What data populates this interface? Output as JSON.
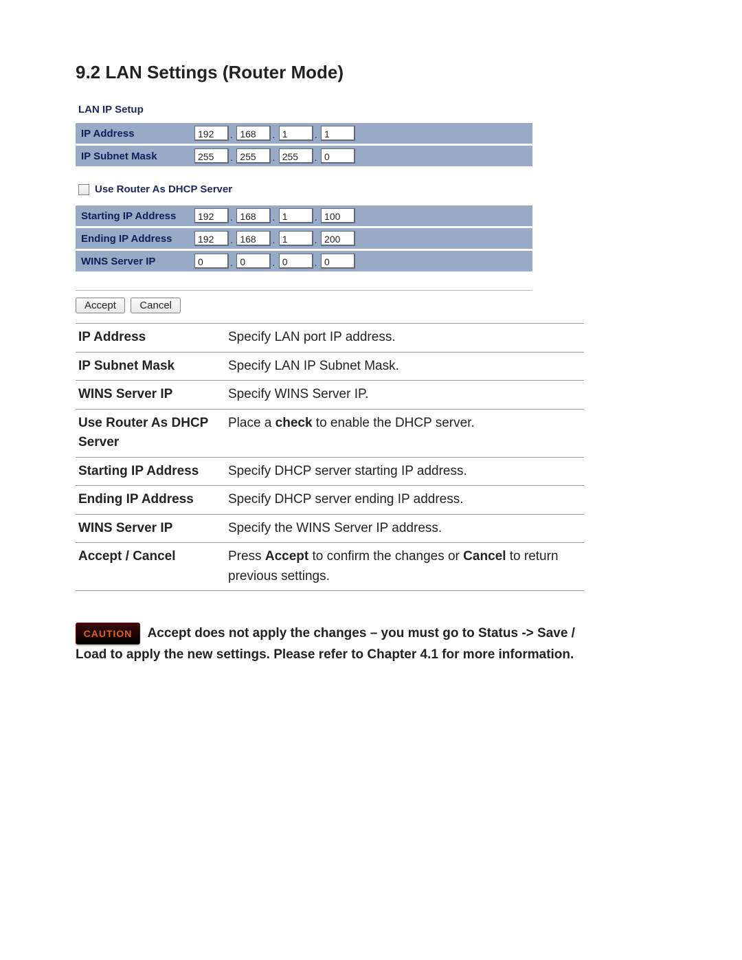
{
  "title": "9.2 LAN Settings (Router Mode)",
  "panel1_heading": "LAN IP Setup",
  "rows1": {
    "ip_address": {
      "label": "IP Address",
      "o": [
        "192",
        "168",
        "1",
        "1"
      ]
    },
    "subnet": {
      "label": "IP Subnet Mask",
      "o": [
        "255",
        "255",
        "255",
        "0"
      ]
    }
  },
  "dhcp_checkbox_label": "Use Router As DHCP Server",
  "rows2": {
    "start": {
      "label": "Starting IP Address",
      "o": [
        "192",
        "168",
        "1",
        "100"
      ]
    },
    "end": {
      "label": "Ending IP Address",
      "o": [
        "192",
        "168",
        "1",
        "200"
      ]
    },
    "wins": {
      "label": "WINS Server IP",
      "o": [
        "0",
        "0",
        "0",
        "0"
      ]
    }
  },
  "buttons": {
    "accept": "Accept",
    "cancel": "Cancel"
  },
  "desc": [
    {
      "k": "IP Address",
      "v": "Specify LAN port IP address."
    },
    {
      "k": "IP Subnet Mask",
      "v": "Specify LAN IP Subnet Mask."
    },
    {
      "k": "WINS Server IP",
      "v": "Specify WINS Server IP."
    },
    {
      "k": "Use Router As DHCP Server",
      "v_pre": "Place a ",
      "v_bold": "check",
      "v_post": " to enable the DHCP server."
    },
    {
      "k": "Starting IP Address",
      "v": "Specify DHCP server starting IP address."
    },
    {
      "k": "Ending IP Address",
      "v": "Specify DHCP server ending IP address."
    },
    {
      "k": "WINS Server IP",
      "v": "Specify the WINS Server IP address."
    },
    {
      "k": "Accept / Cancel",
      "v_pre": "Press ",
      "v_bold": "Accept",
      "v_mid": " to confirm the changes or ",
      "v_bold2": "Cancel",
      "v_post": " to return previous settings."
    }
  ],
  "caution": {
    "badge": "CAUTION",
    "text": "Accept does not apply the changes – you must go to Status -> Save / Load to apply the new settings. Please refer to Chapter 4.1 for more information."
  },
  "colors": {
    "row_bg": "#99aac6",
    "row_text": "#0d1f56",
    "page_bg": "#ffffff"
  }
}
